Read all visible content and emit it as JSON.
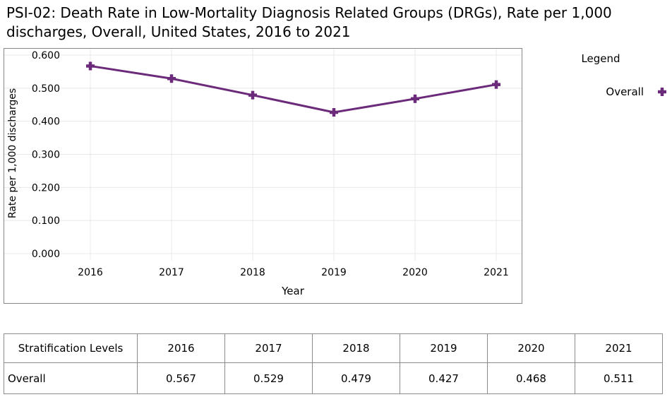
{
  "title": "PSI-02: Death Rate in Low-Mortality Diagnosis Related Groups (DRGs), Rate per 1,000 discharges, Overall, United States, 2016 to 2021",
  "colors": {
    "series": "#6b2a7a",
    "grid": "#e8e8e8",
    "border": "#888888"
  },
  "chart_data": {
    "type": "line",
    "title": "PSI-02: Death Rate in Low-Mortality Diagnosis Related Groups (DRGs), Rate per 1,000 discharges, Overall, United States, 2016 to 2021",
    "xlabel": "Year",
    "ylabel": "Rate per 1,000 discharges",
    "x": [
      "2016",
      "2017",
      "2018",
      "2019",
      "2020",
      "2021"
    ],
    "ylim": [
      0,
      0.6
    ],
    "yticks": [
      "0.000",
      "0.100",
      "0.200",
      "0.300",
      "0.400",
      "0.500",
      "0.600"
    ],
    "grid": true,
    "legend_title": "Legend",
    "legend_position": "right",
    "marker": "plus",
    "series": [
      {
        "name": "Overall",
        "values": [
          0.567,
          0.529,
          0.479,
          0.427,
          0.468,
          0.511
        ]
      }
    ]
  },
  "table": {
    "header_label": "Stratification Levels",
    "columns": [
      "2016",
      "2017",
      "2018",
      "2019",
      "2020",
      "2021"
    ],
    "rows": [
      {
        "label": "Overall",
        "values": [
          "0.567",
          "0.529",
          "0.479",
          "0.427",
          "0.468",
          "0.511"
        ]
      }
    ]
  }
}
